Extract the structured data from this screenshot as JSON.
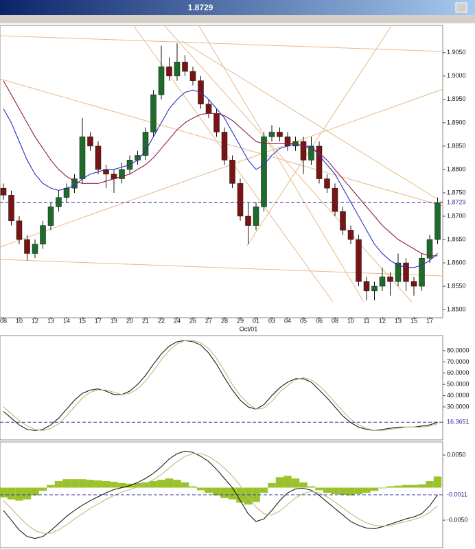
{
  "chart_data": [
    {
      "type": "candlestick",
      "categories": [
        "08",
        null,
        "10",
        null,
        "12",
        null,
        "13",
        null,
        "14",
        null,
        "15",
        null,
        "17",
        null,
        "19",
        null,
        "20",
        null,
        "21",
        null,
        "22",
        null,
        "24",
        null,
        "26",
        null,
        "27",
        null,
        "28",
        null,
        "29",
        null,
        "01",
        null,
        "03",
        null,
        "04",
        null,
        "05",
        null,
        "06",
        null,
        "08",
        null,
        "10",
        null,
        "11",
        null,
        "12",
        null,
        "13",
        null,
        "15",
        null,
        "17",
        null
      ],
      "x_annotation": "Oct/01",
      "open": [
        1.876,
        1.8745,
        1.869,
        1.865,
        1.862,
        1.864,
        1.868,
        1.872,
        1.874,
        1.876,
        1.878,
        1.887,
        1.885,
        1.88,
        1.879,
        1.878,
        1.88,
        1.882,
        1.883,
        1.888,
        1.896,
        1.902,
        1.9,
        1.903,
        1.901,
        1.899,
        1.894,
        1.892,
        1.888,
        1.882,
        1.877,
        1.87,
        1.868,
        1.872,
        1.887,
        1.888,
        1.887,
        1.885,
        1.886,
        1.882,
        1.885,
        1.878,
        1.876,
        1.871,
        1.867,
        1.865,
        1.856,
        1.854,
        1.855,
        1.857,
        1.856,
        1.86,
        1.856,
        1.855,
        1.861,
        1.865
      ],
      "high": [
        1.877,
        1.8755,
        1.87,
        1.866,
        1.865,
        1.869,
        1.873,
        1.8755,
        1.877,
        1.879,
        1.891,
        1.888,
        1.886,
        1.881,
        1.88,
        1.8815,
        1.883,
        1.884,
        1.889,
        1.897,
        1.9065,
        1.904,
        1.907,
        1.9045,
        1.902,
        1.9,
        1.895,
        1.893,
        1.889,
        1.883,
        1.878,
        1.873,
        1.873,
        1.888,
        1.8895,
        1.889,
        1.888,
        1.887,
        1.887,
        1.887,
        1.886,
        1.879,
        1.877,
        1.872,
        1.868,
        1.866,
        1.857,
        1.856,
        1.859,
        1.858,
        1.862,
        1.861,
        1.857,
        1.862,
        1.866,
        1.874
      ],
      "low": [
        1.8735,
        1.868,
        1.864,
        1.8605,
        1.861,
        1.863,
        1.867,
        1.871,
        1.873,
        1.875,
        1.877,
        1.884,
        1.879,
        1.876,
        1.875,
        1.877,
        1.879,
        1.881,
        1.882,
        1.887,
        1.895,
        1.899,
        1.899,
        1.9,
        1.898,
        1.893,
        1.891,
        1.887,
        1.881,
        1.876,
        1.869,
        1.864,
        1.867,
        1.871,
        1.886,
        1.886,
        1.884,
        1.884,
        1.879,
        1.881,
        1.877,
        1.875,
        1.87,
        1.866,
        1.864,
        1.855,
        1.852,
        1.852,
        1.854,
        1.853,
        1.855,
        1.854,
        1.853,
        1.854,
        1.86,
        1.864
      ],
      "close": [
        1.8745,
        1.869,
        1.865,
        1.862,
        1.864,
        1.868,
        1.872,
        1.874,
        1.876,
        1.878,
        1.887,
        1.885,
        1.88,
        1.879,
        1.878,
        1.88,
        1.882,
        1.883,
        1.888,
        1.896,
        1.902,
        1.9,
        1.903,
        1.901,
        1.899,
        1.894,
        1.892,
        1.888,
        1.882,
        1.877,
        1.87,
        1.868,
        1.872,
        1.887,
        1.888,
        1.887,
        1.885,
        1.886,
        1.882,
        1.885,
        1.878,
        1.876,
        1.871,
        1.867,
        1.865,
        1.856,
        1.854,
        1.855,
        1.857,
        1.856,
        1.86,
        1.856,
        1.855,
        1.861,
        1.865,
        1.8729
      ],
      "up_color": "#1f6b2a",
      "down_color": "#7a1414",
      "series": [
        {
          "color": "#2b2bc8",
          "values": [
            1.893,
            1.89,
            1.886,
            1.882,
            1.879,
            1.877,
            1.876,
            1.8755,
            1.876,
            1.8765,
            1.878,
            1.879,
            1.8795,
            1.88,
            1.88,
            1.8805,
            1.881,
            1.882,
            1.884,
            1.887,
            1.89,
            1.893,
            1.895,
            1.8965,
            1.897,
            1.8965,
            1.895,
            1.893,
            1.891,
            1.888,
            1.885,
            1.882,
            1.88,
            1.881,
            1.883,
            1.8845,
            1.885,
            1.8855,
            1.885,
            1.885,
            1.883,
            1.881,
            1.879,
            1.876,
            1.873,
            1.87,
            1.867,
            1.864,
            1.862,
            1.8605,
            1.8595,
            1.859,
            1.859,
            1.8595,
            1.8605,
            1.862
          ]
        },
        {
          "color": "#8b1c44",
          "values": [
            1.899,
            1.896,
            1.893,
            1.89,
            1.887,
            1.8845,
            1.882,
            1.88,
            1.8785,
            1.8775,
            1.877,
            1.877,
            1.877,
            1.8775,
            1.878,
            1.8785,
            1.879,
            1.88,
            1.881,
            1.8825,
            1.8845,
            1.8865,
            1.8885,
            1.89,
            1.891,
            1.8918,
            1.892,
            1.892,
            1.8915,
            1.8905,
            1.889,
            1.8875,
            1.886,
            1.8855,
            1.8855,
            1.8855,
            1.8855,
            1.8855,
            1.885,
            1.8845,
            1.8835,
            1.882,
            1.88,
            1.878,
            1.876,
            1.874,
            1.872,
            1.87,
            1.868,
            1.8665,
            1.865,
            1.864,
            1.863,
            1.862,
            1.8615,
            1.8615
          ]
        }
      ],
      "hline": 1.8729,
      "ylim": [
        1.8484,
        1.9107
      ],
      "yticks": [
        {
          "value": 1.85,
          "label": "1.8500"
        },
        {
          "value": 1.855,
          "label": "1.8550"
        },
        {
          "value": 1.86,
          "label": "1.8600"
        },
        {
          "value": 1.865,
          "label": "1.8650"
        },
        {
          "value": 1.87,
          "label": "1.8700"
        },
        {
          "value": 1.875,
          "label": "1.8750"
        },
        {
          "value": 1.88,
          "label": "1.8800"
        },
        {
          "value": 1.885,
          "label": "1.8850"
        },
        {
          "value": 1.89,
          "label": "1.8900"
        },
        {
          "value": 1.895,
          "label": "1.8950"
        },
        {
          "value": 1.9,
          "label": "1.9000"
        },
        {
          "value": 1.905,
          "label": "1.9050"
        }
      ]
    },
    {
      "type": "line",
      "series": [
        {
          "color": "#1a1a1a",
          "values": [
            26,
            20,
            14,
            10,
            9,
            10,
            14,
            20,
            28,
            36,
            42,
            45,
            46,
            44,
            41,
            41,
            44,
            50,
            58,
            68,
            77,
            84,
            88,
            89,
            88,
            85,
            78,
            68,
            56,
            45,
            36,
            30,
            28,
            32,
            40,
            47,
            52,
            55,
            55,
            52,
            45,
            38,
            30,
            22,
            16,
            12,
            10,
            9,
            10,
            11,
            12,
            12,
            12,
            13,
            14,
            16.3651
          ]
        },
        {
          "color": "#c2b878",
          "values": [
            30,
            24,
            18,
            13,
            10,
            9,
            11,
            15,
            22,
            30,
            38,
            43,
            45,
            45,
            43,
            41,
            42,
            46,
            53,
            62,
            72,
            80,
            86,
            89,
            89,
            87,
            82,
            73,
            62,
            50,
            40,
            33,
            28,
            29,
            35,
            43,
            49,
            54,
            56,
            54,
            49,
            42,
            34,
            26,
            19,
            14,
            11,
            9,
            9,
            10,
            11,
            12,
            12,
            12,
            13,
            15
          ]
        }
      ],
      "hline": 16.3651,
      "ylim": [
        1.3,
        92.8
      ],
      "yticks": [
        {
          "value": 30,
          "label": "30.0000"
        },
        {
          "value": 40,
          "label": "40.0000"
        },
        {
          "value": 50,
          "label": "50.0000"
        },
        {
          "value": 60,
          "label": "60.0000"
        },
        {
          "value": 70,
          "label": "70.0000"
        },
        {
          "value": 80,
          "label": "80.0000"
        }
      ]
    },
    {
      "type": "combo",
      "histogram": {
        "color": "#9ac22a",
        "values": [
          -0.0015,
          -0.0018,
          -0.002,
          -0.0018,
          -0.0012,
          -0.0005,
          0.0004,
          0.001,
          0.0013,
          0.0013,
          0.0013,
          0.0012,
          0.0011,
          0.001,
          0.0009,
          0.0007,
          0.0006,
          0.0007,
          0.0008,
          0.001,
          0.0012,
          0.0014,
          0.0012,
          0.0008,
          0.0002,
          -0.0004,
          -0.0008,
          -0.0012,
          -0.0016,
          -0.0018,
          -0.0023,
          -0.0026,
          -0.0022,
          -0.0008,
          0.0007,
          0.0016,
          0.0018,
          0.0014,
          0.0008,
          0.0002,
          -0.0004,
          -0.0008,
          -0.001,
          -0.0011,
          -0.0012,
          -0.001,
          -0.0008,
          -0.0005,
          -0.0001,
          0.0002,
          0.0003,
          0.0004,
          0.0004,
          0.0005,
          0.001,
          0.0017
        ]
      },
      "series": [
        {
          "color": "#1a1a1a",
          "values": [
            -0.0035,
            -0.005,
            -0.0065,
            -0.0075,
            -0.0078,
            -0.0075,
            -0.0066,
            -0.0055,
            -0.0044,
            -0.0035,
            -0.0027,
            -0.002,
            -0.0014,
            -0.0008,
            -0.0003,
            0.0,
            0.0003,
            0.0008,
            0.0014,
            0.0022,
            0.0032,
            0.0044,
            0.0052,
            0.0056,
            0.0054,
            0.0048,
            0.004,
            0.0028,
            0.0014,
            0.0,
            -0.002,
            -0.004,
            -0.0052,
            -0.0048,
            -0.0035,
            -0.002,
            -0.0008,
            -0.0002,
            -0.0001,
            -0.0004,
            -0.0012,
            -0.0022,
            -0.0032,
            -0.0042,
            -0.0052,
            -0.0058,
            -0.0062,
            -0.0063,
            -0.006,
            -0.0056,
            -0.0052,
            -0.0048,
            -0.0045,
            -0.004,
            -0.0028,
            -0.0011
          ]
        },
        {
          "color": "#c2b878",
          "values": [
            -0.002,
            -0.0032,
            -0.0045,
            -0.0057,
            -0.0066,
            -0.007,
            -0.007,
            -0.0065,
            -0.0057,
            -0.0048,
            -0.004,
            -0.0032,
            -0.0025,
            -0.0018,
            -0.0012,
            -0.0007,
            -0.0003,
            0.0001,
            0.0006,
            0.0012,
            0.002,
            0.003,
            0.004,
            0.0048,
            0.0052,
            0.0052,
            0.0048,
            0.004,
            0.003,
            0.0018,
            0.0003,
            -0.0014,
            -0.003,
            -0.004,
            -0.0042,
            -0.0036,
            -0.0026,
            -0.0016,
            -0.0009,
            -0.0006,
            -0.0008,
            -0.0014,
            -0.0022,
            -0.0031,
            -0.004,
            -0.0048,
            -0.0054,
            -0.0058,
            -0.0059,
            -0.0058,
            -0.0055,
            -0.0052,
            -0.0049,
            -0.0045,
            -0.0038,
            -0.0028
          ]
        }
      ],
      "hline": -0.0011,
      "ylim": [
        -0.0091,
        0.0069
      ],
      "yticks": [
        {
          "value": -0.005,
          "label": "-0.0050"
        },
        {
          "value": 0.005,
          "label": "0.0050"
        }
      ]
    }
  ]
}
